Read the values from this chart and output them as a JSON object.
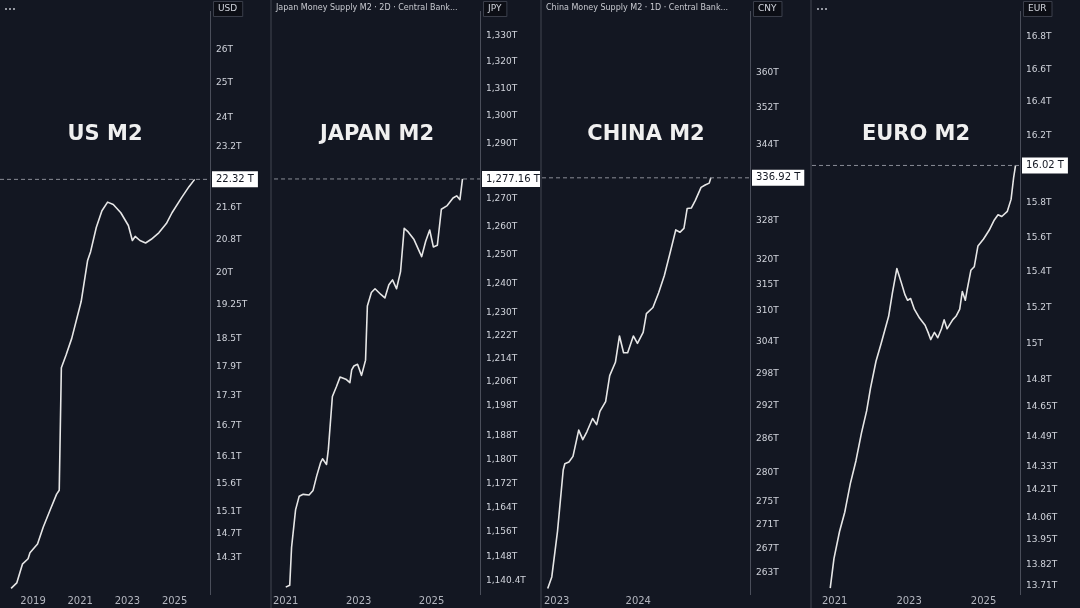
{
  "chart_data": [
    {
      "type": "line",
      "title": "US M2",
      "ylabel": "USD",
      "log": true,
      "marker": "none",
      "color": "#e6e6e6",
      "x": [
        2018.07,
        2018.31,
        2018.55,
        2018.79,
        2018.87,
        2019.19,
        2019.43,
        2019.75,
        2020.0,
        2020.11,
        2020.2,
        2020.4,
        2020.64,
        2021.04,
        2021.31,
        2021.44,
        2021.68,
        2021.92,
        2022.16,
        2022.4,
        2022.72,
        2023.04,
        2023.21,
        2023.33,
        2023.53,
        2023.77,
        2024.01,
        2024.33,
        2024.65,
        2024.89,
        2025.29,
        2025.61,
        2025.85
      ],
      "values": [
        13.79,
        13.88,
        14.19,
        14.28,
        14.38,
        14.53,
        14.82,
        15.15,
        15.41,
        15.48,
        17.88,
        18.15,
        18.51,
        19.33,
        20.28,
        20.5,
        21.09,
        21.51,
        21.73,
        21.67,
        21.46,
        21.14,
        20.77,
        20.87,
        20.77,
        20.71,
        20.8,
        20.96,
        21.19,
        21.46,
        21.84,
        22.13,
        22.32
      ],
      "xlim": [
        2017.6,
        2026.5
      ],
      "xticks": [
        2019,
        2021,
        2023,
        2025
      ],
      "ylim": [
        13.7,
        27.2
      ],
      "yticks": [
        {
          "value": 26,
          "label": "26T"
        },
        {
          "value": 25,
          "label": "25T"
        },
        {
          "value": 24,
          "label": "24T"
        },
        {
          "value": 23.2,
          "label": "23.2T"
        },
        {
          "value": 21.6,
          "label": "21.6T"
        },
        {
          "value": 20.8,
          "label": "20.8T"
        },
        {
          "value": 20,
          "label": "20T"
        },
        {
          "value": 19.25,
          "label": "19.25T"
        },
        {
          "value": 18.5,
          "label": "18.5T"
        },
        {
          "value": 17.9,
          "label": "17.9T"
        },
        {
          "value": 17.3,
          "label": "17.3T"
        },
        {
          "value": 16.7,
          "label": "16.7T"
        },
        {
          "value": 16.1,
          "label": "16.1T"
        },
        {
          "value": 15.6,
          "label": "15.6T"
        },
        {
          "value": 15.1,
          "label": "15.1T"
        },
        {
          "value": 14.7,
          "label": "14.7T"
        },
        {
          "value": 14.3,
          "label": "14.3T"
        }
      ],
      "ref_lines": [
        {
          "axis": "y",
          "value": 22.32,
          "label": "22.32 T",
          "color": "#8a8d96",
          "line_style": "dashed"
        }
      ]
    },
    {
      "type": "line",
      "title": "JAPAN M2",
      "subtitle": "Japan Money Supply M2 · 2D · Central Bank...",
      "ylabel": "JPY",
      "log": true,
      "marker": "none",
      "color": "#e6e6e6",
      "x": [
        2021.0,
        2021.11,
        2021.16,
        2021.27,
        2021.37,
        2021.48,
        2021.64,
        2021.75,
        2021.85,
        2021.96,
        2022.01,
        2022.12,
        2022.17,
        2022.28,
        2022.39,
        2022.49,
        2022.65,
        2022.76,
        2022.81,
        2022.87,
        2022.97,
        2023.08,
        2023.19,
        2023.24,
        2023.35,
        2023.45,
        2023.61,
        2023.72,
        2023.83,
        2023.93,
        2024.04,
        2024.15,
        2024.25,
        2024.36,
        2024.52,
        2024.68,
        2024.73,
        2024.84,
        2024.95,
        2025.05,
        2025.16,
        2025.27,
        2025.43,
        2025.59,
        2025.69,
        2025.78,
        2025.85
      ],
      "values": [
        1138.2,
        1138.8,
        1151,
        1163.3,
        1167.8,
        1168.4,
        1168.2,
        1169.7,
        1174.5,
        1179,
        1180.2,
        1178.3,
        1183.4,
        1201.1,
        1204.4,
        1207.7,
        1207,
        1205.8,
        1210.2,
        1211.5,
        1212.1,
        1208.3,
        1213.5,
        1232.2,
        1236.9,
        1238.2,
        1236.2,
        1235,
        1239.6,
        1241.3,
        1238.2,
        1244.2,
        1259.5,
        1258.2,
        1255.5,
        1250.9,
        1249.5,
        1254.9,
        1258.9,
        1252.9,
        1253.5,
        1266.3,
        1267.6,
        1270.3,
        1271.1,
        1269.7,
        1277.16
      ],
      "xlim": [
        2020.68,
        2026.33
      ],
      "xticks": [
        2021,
        2023,
        2025
      ],
      "ylim": [
        1136,
        1339
      ],
      "yticks": [
        {
          "value": 1330,
          "label": "1,330T"
        },
        {
          "value": 1320,
          "label": "1,320T"
        },
        {
          "value": 1310,
          "label": "1,310T"
        },
        {
          "value": 1300,
          "label": "1,300T"
        },
        {
          "value": 1290,
          "label": "1,290T"
        },
        {
          "value": 1270,
          "label": "1,270T"
        },
        {
          "value": 1260,
          "label": "1,260T"
        },
        {
          "value": 1250,
          "label": "1,250T"
        },
        {
          "value": 1240,
          "label": "1,240T"
        },
        {
          "value": 1230,
          "label": "1,230T"
        },
        {
          "value": 1222,
          "label": "1,222T"
        },
        {
          "value": 1214,
          "label": "1,214T"
        },
        {
          "value": 1206,
          "label": "1,206T"
        },
        {
          "value": 1198,
          "label": "1,198T"
        },
        {
          "value": 1188,
          "label": "1,188T"
        },
        {
          "value": 1180,
          "label": "1,180T"
        },
        {
          "value": 1172,
          "label": "1,172T"
        },
        {
          "value": 1164,
          "label": "1,164T"
        },
        {
          "value": 1156,
          "label": "1,156T"
        },
        {
          "value": 1148,
          "label": "1,148T"
        },
        {
          "value": 1140.4,
          "label": "1,140.4T"
        }
      ],
      "ref_lines": [
        {
          "axis": "y",
          "value": 1277.16,
          "label": "1,277.16 T",
          "color": "#8a8d96",
          "line_style": "dashed"
        }
      ]
    },
    {
      "type": "line",
      "title": "CHINA M2",
      "subtitle": "China Money Supply M2 · 1D · Central Bank...",
      "ylabel": "CNY",
      "log": true,
      "marker": "none",
      "color": "#e6e6e6",
      "x": [
        2022.89,
        2022.94,
        2023.01,
        2023.08,
        2023.1,
        2023.15,
        2023.2,
        2023.27,
        2023.32,
        2023.37,
        2023.44,
        2023.49,
        2023.53,
        2023.6,
        2023.65,
        2023.72,
        2023.77,
        2023.82,
        2023.87,
        2023.94,
        2023.99,
        2024.06,
        2024.1,
        2024.18,
        2024.25,
        2024.32,
        2024.39,
        2024.46,
        2024.51,
        2024.56,
        2024.6,
        2024.65,
        2024.7,
        2024.77,
        2024.82,
        2024.87,
        2024.89
      ],
      "values": [
        260.4,
        262.3,
        269.9,
        280.5,
        281.6,
        281.9,
        282.9,
        287.6,
        285.9,
        287.3,
        289.7,
        288.6,
        291,
        292.8,
        297.6,
        300.1,
        305.1,
        301.9,
        301.9,
        305.1,
        303.7,
        305.8,
        309.4,
        310.6,
        313.5,
        316.9,
        321.4,
        326.1,
        325.6,
        326.4,
        330.5,
        330.6,
        332.2,
        334.9,
        335.4,
        335.8,
        336.92
      ],
      "xlim": [
        2022.82,
        2025.37
      ],
      "xticks": [
        2023,
        2024
      ],
      "ylim": [
        259.5,
        374
      ],
      "yticks": [
        {
          "value": 360,
          "label": "360T"
        },
        {
          "value": 352,
          "label": "352T"
        },
        {
          "value": 344,
          "label": "344T"
        },
        {
          "value": 328,
          "label": "328T"
        },
        {
          "value": 320,
          "label": "320T"
        },
        {
          "value": 315,
          "label": "315T"
        },
        {
          "value": 310,
          "label": "310T"
        },
        {
          "value": 304,
          "label": "304T"
        },
        {
          "value": 298,
          "label": "298T"
        },
        {
          "value": 292,
          "label": "292T"
        },
        {
          "value": 286,
          "label": "286T"
        },
        {
          "value": 280,
          "label": "280T"
        },
        {
          "value": 275,
          "label": "275T"
        },
        {
          "value": 271,
          "label": "271T"
        },
        {
          "value": 267,
          "label": "267T"
        },
        {
          "value": 263,
          "label": "263T"
        }
      ],
      "ref_lines": [
        {
          "axis": "y",
          "value": 336.92,
          "label": "336.92 T",
          "color": "#8a8d96",
          "line_style": "dashed"
        }
      ]
    },
    {
      "type": "line",
      "title": "EURO M2",
      "ylabel": "EUR",
      "log": true,
      "marker": "none",
      "color": "#e6e6e6",
      "x": [
        2020.88,
        2020.98,
        2021.13,
        2021.27,
        2021.42,
        2021.57,
        2021.72,
        2021.86,
        2021.96,
        2022.11,
        2022.25,
        2022.45,
        2022.55,
        2022.67,
        2022.79,
        2022.89,
        2022.96,
        2023.04,
        2023.14,
        2023.28,
        2023.43,
        2023.51,
        2023.58,
        2023.68,
        2023.77,
        2023.87,
        2023.94,
        2024.02,
        2024.17,
        2024.26,
        2024.36,
        2024.43,
        2024.51,
        2024.56,
        2024.66,
        2024.75,
        2024.85,
        2025.0,
        2025.15,
        2025.29,
        2025.39,
        2025.49,
        2025.64,
        2025.74,
        2025.81,
        2025.86
      ],
      "values": [
        13.7,
        13.85,
        13.99,
        14.09,
        14.24,
        14.36,
        14.51,
        14.63,
        14.75,
        14.9,
        15,
        15.15,
        15.28,
        15.42,
        15.34,
        15.27,
        15.24,
        15.25,
        15.19,
        15.14,
        15.1,
        15.06,
        15.02,
        15.06,
        15.03,
        15.08,
        15.13,
        15.08,
        15.13,
        15.15,
        15.19,
        15.29,
        15.24,
        15.3,
        15.41,
        15.43,
        15.55,
        15.59,
        15.64,
        15.7,
        15.73,
        15.72,
        15.75,
        15.82,
        15.95,
        16.02
      ],
      "xlim": [
        2020.39,
        2025.98
      ],
      "xticks": [
        2021,
        2023,
        2025
      ],
      "ylim": [
        13.67,
        16.96
      ],
      "yticks": [
        {
          "value": 16.8,
          "label": "16.8T"
        },
        {
          "value": 16.6,
          "label": "16.6T"
        },
        {
          "value": 16.4,
          "label": "16.4T"
        },
        {
          "value": 16.2,
          "label": "16.2T"
        },
        {
          "value": 15.8,
          "label": "15.8T"
        },
        {
          "value": 15.6,
          "label": "15.6T"
        },
        {
          "value": 15.4,
          "label": "15.4T"
        },
        {
          "value": 15.2,
          "label": "15.2T"
        },
        {
          "value": 15,
          "label": "15T"
        },
        {
          "value": 14.8,
          "label": "14.8T"
        },
        {
          "value": 14.65,
          "label": "14.65T"
        },
        {
          "value": 14.49,
          "label": "14.49T"
        },
        {
          "value": 14.33,
          "label": "14.33T"
        },
        {
          "value": 14.21,
          "label": "14.21T"
        },
        {
          "value": 14.06,
          "label": "14.06T"
        },
        {
          "value": 13.95,
          "label": "13.95T"
        },
        {
          "value": 13.82,
          "label": "13.82T"
        },
        {
          "value": 13.71,
          "label": "13.71T"
        }
      ],
      "ref_lines": [
        {
          "axis": "y",
          "value": 16.02,
          "label": "16.02 T",
          "color": "#8a8d96",
          "line_style": "dashed"
        }
      ]
    }
  ]
}
